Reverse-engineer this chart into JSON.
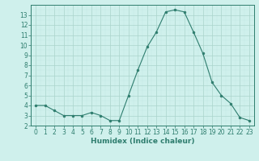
{
  "x": [
    0,
    1,
    2,
    3,
    4,
    5,
    6,
    7,
    8,
    9,
    10,
    11,
    12,
    13,
    14,
    15,
    16,
    17,
    18,
    19,
    20,
    21,
    22,
    23
  ],
  "y": [
    4.0,
    4.0,
    3.5,
    3.0,
    3.0,
    3.0,
    3.3,
    3.0,
    2.5,
    2.5,
    5.0,
    7.5,
    9.8,
    11.3,
    13.3,
    13.5,
    13.3,
    11.3,
    9.2,
    6.3,
    5.0,
    4.2,
    2.8,
    2.5
  ],
  "line_color": "#2e7d6e",
  "marker": "o",
  "marker_size": 2,
  "bg_color": "#cff0ec",
  "grid_color_major": "#aad4cc",
  "grid_color_minor": "#c2e8e3",
  "xlabel": "Humidex (Indice chaleur)",
  "ylim": [
    2,
    14
  ],
  "xlim": [
    -0.5,
    23.5
  ],
  "yticks": [
    2,
    3,
    4,
    5,
    6,
    7,
    8,
    9,
    10,
    11,
    12,
    13
  ],
  "xticks": [
    0,
    1,
    2,
    3,
    4,
    5,
    6,
    7,
    8,
    9,
    10,
    11,
    12,
    13,
    14,
    15,
    16,
    17,
    18,
    19,
    20,
    21,
    22,
    23
  ],
  "tick_color": "#2e7d6e",
  "spine_color": "#2e7d6e",
  "xlabel_fontsize": 6.5,
  "tick_fontsize": 5.5,
  "line_width": 0.8
}
